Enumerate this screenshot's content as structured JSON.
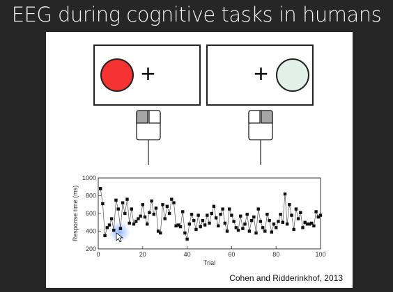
{
  "slide": {
    "title": "EEG during cognitive tasks in humans",
    "caption": "Cohen and Ridderinkhof, 2013"
  },
  "stimuli": {
    "left": {
      "circle_color": "#f53333",
      "symbol": "+"
    },
    "right": {
      "circle_color": "#e2f0ea",
      "symbol": "+"
    },
    "mouse_left_active": "left-button",
    "mouse_right_active": "left-button"
  },
  "chart_data": {
    "type": "line",
    "xlabel": "Trial",
    "ylabel": "Response time (ms)",
    "xlim": [
      0,
      100
    ],
    "ylim": [
      200,
      1000
    ],
    "xticks": [
      0,
      20,
      40,
      60,
      80,
      100
    ],
    "yticks": [
      200,
      400,
      600,
      800,
      1000
    ],
    "marker": "square",
    "grid": false,
    "x": [
      1,
      2,
      3,
      4,
      5,
      6,
      7,
      8,
      9,
      10,
      11,
      12,
      13,
      14,
      15,
      16,
      17,
      18,
      19,
      20,
      21,
      22,
      23,
      24,
      25,
      26,
      27,
      28,
      29,
      30,
      31,
      32,
      33,
      34,
      35,
      36,
      37,
      38,
      39,
      40,
      41,
      42,
      43,
      44,
      45,
      46,
      47,
      48,
      49,
      50,
      51,
      52,
      53,
      54,
      55,
      56,
      57,
      58,
      59,
      60,
      61,
      62,
      63,
      64,
      65,
      66,
      67,
      68,
      69,
      70,
      71,
      72,
      73,
      74,
      75,
      76,
      77,
      78,
      79,
      80,
      81,
      82,
      83,
      84,
      85,
      86,
      87,
      88,
      89,
      90,
      91,
      92,
      93,
      94,
      95,
      96,
      97,
      98,
      99,
      100
    ],
    "y": [
      880,
      710,
      350,
      440,
      470,
      540,
      410,
      750,
      650,
      430,
      720,
      600,
      760,
      490,
      650,
      480,
      510,
      540,
      570,
      700,
      560,
      480,
      610,
      740,
      590,
      660,
      400,
      380,
      700,
      540,
      680,
      600,
      760,
      720,
      460,
      470,
      450,
      620,
      380,
      310,
      480,
      590,
      520,
      420,
      580,
      450,
      520,
      470,
      580,
      490,
      600,
      680,
      550,
      460,
      590,
      650,
      490,
      400,
      650,
      580,
      510,
      440,
      410,
      570,
      430,
      480,
      590,
      400,
      520,
      560,
      380,
      650,
      510,
      440,
      400,
      590,
      520,
      390,
      480,
      440,
      510,
      590,
      500,
      820,
      480,
      700,
      580,
      420,
      650,
      540,
      610,
      440,
      500,
      480,
      480,
      490,
      460,
      620,
      560,
      580
    ]
  }
}
